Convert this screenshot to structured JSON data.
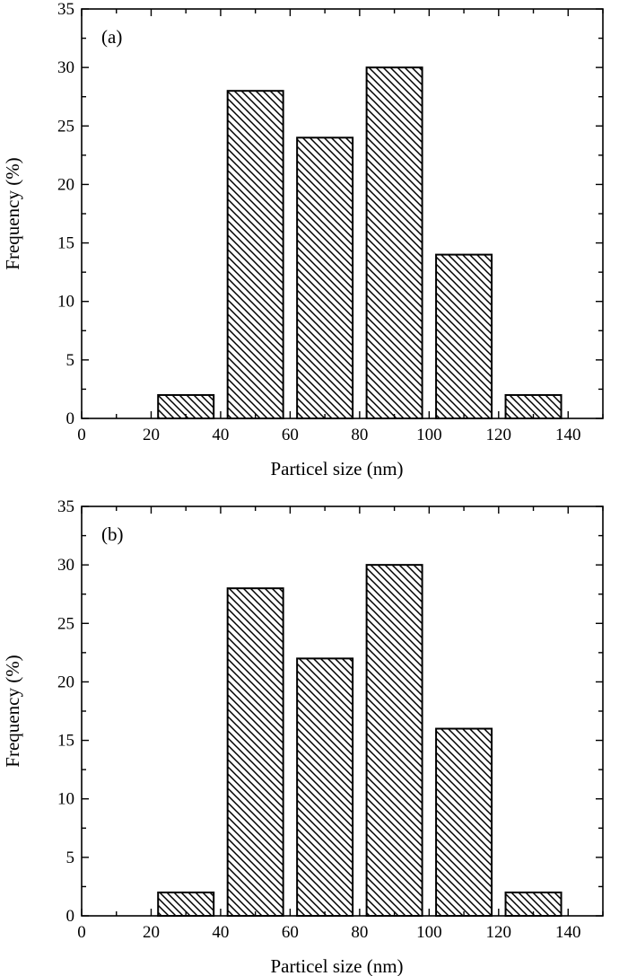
{
  "chart_data": [
    {
      "type": "bar",
      "panel_label": "(a)",
      "xlabel": "Particel size (nm)",
      "ylabel": "Frequency (%)",
      "xlim": [
        0,
        150
      ],
      "ylim": [
        0,
        35
      ],
      "xticks": [
        "0",
        "20",
        "40",
        "60",
        "80",
        "100",
        "120",
        "140"
      ],
      "yticks": [
        "0",
        "5",
        "10",
        "15",
        "20",
        "25",
        "30",
        "35"
      ],
      "bars": [
        {
          "x_start": 22,
          "x_end": 38,
          "value": 2
        },
        {
          "x_start": 42,
          "x_end": 58,
          "value": 28
        },
        {
          "x_start": 62,
          "x_end": 78,
          "value": 24
        },
        {
          "x_start": 82,
          "x_end": 98,
          "value": 30
        },
        {
          "x_start": 102,
          "x_end": 118,
          "value": 14
        },
        {
          "x_start": 122,
          "x_end": 138,
          "value": 2
        }
      ],
      "bar_fill": "diagonal hatch",
      "grid": false
    },
    {
      "type": "bar",
      "panel_label": "(b)",
      "xlabel": "Particel size (nm)",
      "ylabel": "Frequency (%)",
      "xlim": [
        0,
        150
      ],
      "ylim": [
        0,
        35
      ],
      "xticks": [
        "0",
        "20",
        "40",
        "60",
        "80",
        "100",
        "120",
        "140"
      ],
      "yticks": [
        "0",
        "5",
        "10",
        "15",
        "20",
        "25",
        "30",
        "35"
      ],
      "bars": [
        {
          "x_start": 22,
          "x_end": 38,
          "value": 2
        },
        {
          "x_start": 42,
          "x_end": 58,
          "value": 28
        },
        {
          "x_start": 62,
          "x_end": 78,
          "value": 22
        },
        {
          "x_start": 82,
          "x_end": 98,
          "value": 30
        },
        {
          "x_start": 102,
          "x_end": 118,
          "value": 16
        },
        {
          "x_start": 122,
          "x_end": 138,
          "value": 2
        }
      ],
      "bar_fill": "diagonal hatch",
      "grid": false
    }
  ],
  "colors": {
    "axis": "#000000",
    "bar_stroke": "#000000",
    "hatch": "#000000",
    "background": "#ffffff"
  }
}
